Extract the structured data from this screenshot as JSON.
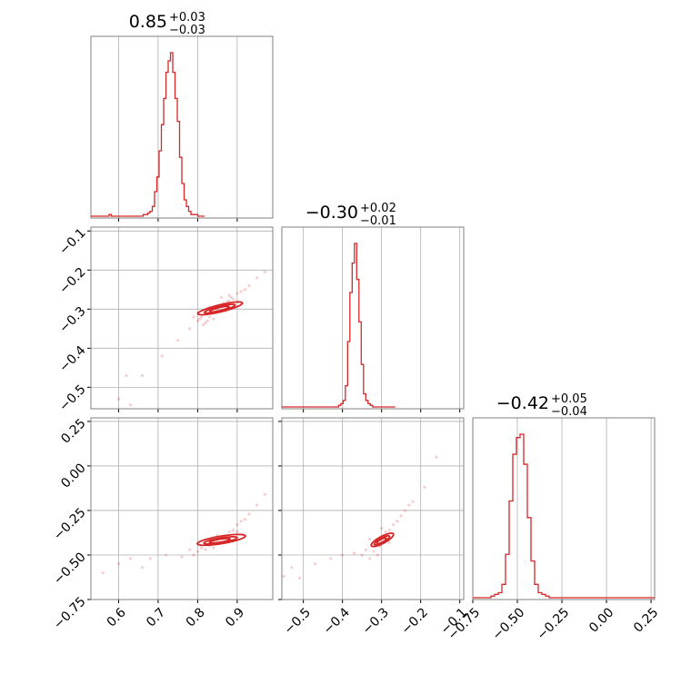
{
  "chart_data": {
    "type": "corner",
    "color": "#d62728",
    "parameters": [
      {
        "title_value": "0.85",
        "title_plus": "+0.03",
        "title_minus": "−0.03",
        "range": [
          0.53,
          0.99
        ],
        "ticks": [
          0.6,
          0.7,
          0.8,
          0.9
        ],
        "tick_labels": [
          "0.6",
          "0.7",
          "0.8",
          "0.9"
        ]
      },
      {
        "title_value": "−0.30",
        "title_plus": "+0.02",
        "title_minus": "−0.01",
        "range": [
          -0.555,
          -0.09
        ],
        "ticks": [
          -0.5,
          -0.4,
          -0.3,
          -0.2,
          -0.1
        ],
        "tick_labels": [
          "−0.5",
          "−0.4",
          "−0.3",
          "−0.2",
          "−0.1"
        ]
      },
      {
        "title_value": "−0.42",
        "title_plus": "+0.05",
        "title_minus": "−0.04",
        "range": [
          -0.75,
          0.27
        ],
        "ticks": [
          -0.75,
          -0.5,
          -0.25,
          0.0,
          0.25
        ],
        "tick_labels": [
          "−0.75",
          "−0.50",
          "−0.25",
          "0.00",
          "0.25"
        ]
      }
    ],
    "histograms": [
      {
        "edges_start": 0.53,
        "bin_width": 0.00575,
        "counts": [
          0,
          0,
          0,
          0,
          0,
          0,
          0,
          0,
          1,
          0,
          0,
          0,
          0,
          0,
          0,
          0,
          0,
          0,
          0,
          0,
          0,
          0,
          0,
          1,
          1,
          2,
          3,
          6,
          15,
          24,
          40,
          56,
          72,
          88,
          95,
          100,
          88,
          72,
          58,
          36,
          20,
          10,
          6,
          3,
          1,
          1,
          1,
          0,
          0,
          0
        ]
      },
      {
        "edges_start": -0.555,
        "bin_width": 0.0058,
        "counts": [
          0,
          0,
          0,
          0,
          0,
          0,
          0,
          0,
          0,
          0,
          0,
          0,
          0,
          0,
          0,
          0,
          0,
          0,
          0,
          0,
          0,
          0,
          0,
          0,
          0,
          1,
          2,
          4,
          13,
          40,
          70,
          88,
          100,
          78,
          52,
          26,
          8,
          4,
          2,
          1,
          0,
          0,
          0,
          0,
          0,
          0,
          0,
          0,
          0,
          0
        ]
      },
      {
        "edges_start": -0.75,
        "bin_width": 0.0204,
        "counts": [
          0,
          0,
          0,
          0,
          0,
          1,
          2,
          3,
          8,
          26,
          58,
          86,
          96,
          98,
          80,
          48,
          22,
          8,
          3,
          2,
          1,
          0,
          0,
          0,
          0,
          0,
          0,
          0,
          0,
          0,
          0,
          0,
          0,
          0,
          0,
          0,
          0,
          0,
          0,
          0,
          0,
          0,
          0,
          0,
          0,
          0,
          0,
          0,
          0,
          0
        ]
      }
    ],
    "pair_0_1": {
      "points": [
        [
          0.6,
          -0.53
        ],
        [
          0.62,
          -0.47
        ],
        [
          0.63,
          -0.545
        ],
        [
          0.66,
          -0.47
        ],
        [
          0.71,
          -0.42
        ],
        [
          0.75,
          -0.38
        ],
        [
          0.78,
          -0.35
        ],
        [
          0.8,
          -0.33
        ],
        [
          0.805,
          -0.325
        ],
        [
          0.81,
          -0.32
        ],
        [
          0.815,
          -0.34
        ],
        [
          0.82,
          -0.31
        ],
        [
          0.825,
          -0.33
        ],
        [
          0.83,
          -0.32
        ],
        [
          0.84,
          -0.31
        ],
        [
          0.845,
          -0.3
        ],
        [
          0.85,
          -0.3
        ],
        [
          0.855,
          -0.29
        ],
        [
          0.86,
          -0.305
        ],
        [
          0.865,
          -0.285
        ],
        [
          0.87,
          -0.29
        ],
        [
          0.875,
          -0.28
        ],
        [
          0.88,
          -0.28
        ],
        [
          0.885,
          -0.27
        ],
        [
          0.89,
          -0.275
        ],
        [
          0.9,
          -0.26
        ],
        [
          0.91,
          -0.255
        ],
        [
          0.92,
          -0.25
        ],
        [
          0.93,
          -0.24
        ],
        [
          0.95,
          -0.22
        ],
        [
          0.97,
          -0.205
        ],
        [
          0.8,
          -0.31
        ],
        [
          0.79,
          -0.32
        ],
        [
          0.83,
          -0.295
        ],
        [
          0.86,
          -0.27
        ],
        [
          0.88,
          -0.265
        ],
        [
          0.84,
          -0.325
        ],
        [
          0.82,
          -0.335
        ],
        [
          0.87,
          -0.305
        ],
        [
          0.9,
          -0.28
        ]
      ],
      "contours": [
        {
          "center": [
            0.857,
            -0.298
          ],
          "rx": 0.058,
          "ry": 0.009,
          "angle": 0.24
        },
        {
          "center": [
            0.856,
            -0.299
          ],
          "rx": 0.04,
          "ry": 0.006,
          "angle": 0.24
        },
        {
          "center": [
            0.855,
            -0.3
          ],
          "rx": 0.025,
          "ry": 0.004,
          "angle": 0.24
        }
      ]
    },
    "pair_0_2": {
      "points": [
        [
          0.56,
          -0.6
        ],
        [
          0.6,
          -0.55
        ],
        [
          0.63,
          -0.52
        ],
        [
          0.66,
          -0.57
        ],
        [
          0.68,
          -0.52
        ],
        [
          0.72,
          -0.5
        ],
        [
          0.76,
          -0.51
        ],
        [
          0.78,
          -0.47
        ],
        [
          0.8,
          -0.48
        ],
        [
          0.81,
          -0.46
        ],
        [
          0.82,
          -0.44
        ],
        [
          0.83,
          -0.45
        ],
        [
          0.84,
          -0.42
        ],
        [
          0.85,
          -0.43
        ],
        [
          0.86,
          -0.4
        ],
        [
          0.87,
          -0.4
        ],
        [
          0.88,
          -0.37
        ],
        [
          0.89,
          -0.36
        ],
        [
          0.9,
          -0.33
        ],
        [
          0.91,
          -0.31
        ],
        [
          0.92,
          -0.3
        ],
        [
          0.93,
          -0.27
        ],
        [
          0.95,
          -0.22
        ],
        [
          0.97,
          -0.16
        ],
        [
          0.79,
          -0.5
        ],
        [
          0.82,
          -0.47
        ],
        [
          0.85,
          -0.39
        ],
        [
          0.87,
          -0.43
        ],
        [
          0.9,
          -0.37
        ],
        [
          0.84,
          -0.46
        ]
      ],
      "contours": [
        {
          "center": [
            0.86,
            -0.415
          ],
          "rx": 0.065,
          "ry": 0.02,
          "angle": 0.38
        },
        {
          "center": [
            0.858,
            -0.418
          ],
          "rx": 0.045,
          "ry": 0.013,
          "angle": 0.38
        },
        {
          "center": [
            0.856,
            -0.42
          ],
          "rx": 0.028,
          "ry": 0.008,
          "angle": 0.38
        }
      ]
    },
    "pair_1_2": {
      "points": [
        [
          -0.55,
          -0.62
        ],
        [
          -0.53,
          -0.57
        ],
        [
          -0.51,
          -0.63
        ],
        [
          -0.47,
          -0.55
        ],
        [
          -0.43,
          -0.52
        ],
        [
          -0.4,
          -0.5
        ],
        [
          -0.37,
          -0.49
        ],
        [
          -0.35,
          -0.5
        ],
        [
          -0.34,
          -0.47
        ],
        [
          -0.33,
          -0.52
        ],
        [
          -0.325,
          -0.44
        ],
        [
          -0.32,
          -0.48
        ],
        [
          -0.31,
          -0.42
        ],
        [
          -0.305,
          -0.45
        ],
        [
          -0.3,
          -0.4
        ],
        [
          -0.295,
          -0.43
        ],
        [
          -0.29,
          -0.37
        ],
        [
          -0.28,
          -0.36
        ],
        [
          -0.27,
          -0.33
        ],
        [
          -0.26,
          -0.31
        ],
        [
          -0.25,
          -0.28
        ],
        [
          -0.24,
          -0.25
        ],
        [
          -0.23,
          -0.22
        ],
        [
          -0.22,
          -0.2
        ],
        [
          -0.19,
          -0.12
        ],
        [
          -0.16,
          0.05
        ],
        [
          -0.31,
          -0.5
        ],
        [
          -0.33,
          -0.41
        ],
        [
          -0.28,
          -0.43
        ],
        [
          -0.3,
          -0.35
        ]
      ],
      "contours": [
        {
          "center": [
            -0.298,
            -0.415
          ],
          "rx": 0.045,
          "ry": 0.014,
          "angle": 0.95
        },
        {
          "center": [
            -0.299,
            -0.418
          ],
          "rx": 0.031,
          "ry": 0.009,
          "angle": 0.95
        },
        {
          "center": [
            -0.3,
            -0.42
          ],
          "rx": 0.019,
          "ry": 0.006,
          "angle": 0.95
        }
      ]
    }
  }
}
